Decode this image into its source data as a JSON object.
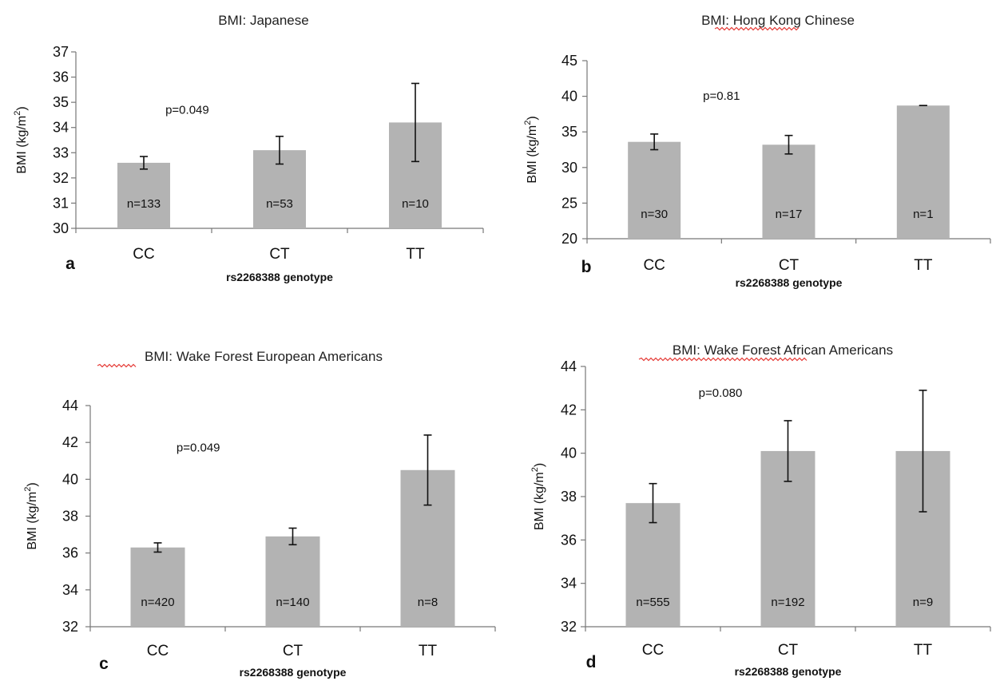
{
  "chart_data": [
    {
      "type": "bar",
      "panel_label": "a",
      "title": "BMI: Japanese",
      "xlabel": "rs2268388 genotype",
      "ylabel": "BMI (kg/m2)",
      "ylim": [
        30,
        37
      ],
      "yticks": [
        "30",
        "31",
        "32",
        "33",
        "34",
        "35",
        "36",
        "37"
      ],
      "categories": [
        "CC",
        "CT",
        "TT"
      ],
      "values": [
        32.6,
        33.1,
        34.2
      ],
      "err_low": [
        32.35,
        32.55,
        32.65
      ],
      "err_high": [
        32.85,
        33.65,
        35.75
      ],
      "n_labels": [
        "n=133",
        "n=53",
        "n=10"
      ],
      "annotation": "p=0.049",
      "annotation_x": 0.82,
      "annotation_y": 34.55
    },
    {
      "type": "bar",
      "panel_label": "b",
      "title": "BMI: Hong Kong  Chinese",
      "xlabel": "rs2268388 genotype",
      "ylabel": "BMI (kg/m2)",
      "ylim": [
        20,
        45
      ],
      "yticks": [
        "20",
        "25",
        "30",
        "35",
        "40",
        "45"
      ],
      "categories": [
        "CC",
        "CT",
        "TT"
      ],
      "values": [
        33.6,
        33.2,
        38.7
      ],
      "err_low": [
        32.5,
        31.9,
        38.7
      ],
      "err_high": [
        34.7,
        34.5,
        38.7
      ],
      "n_labels": [
        "n=30",
        "n=17",
        "n=1"
      ],
      "annotation": "p=0.81",
      "annotation_x": 1.0,
      "annotation_y": 39.5
    },
    {
      "type": "bar",
      "panel_label": "c",
      "title": "BMI:  Wake Forest European Americans",
      "xlabel": "rs2268388 genotype",
      "ylabel": "BMI (kg/m2)",
      "ylim": [
        32,
        44
      ],
      "yticks": [
        "32",
        "34",
        "36",
        "38",
        "40",
        "42",
        "44"
      ],
      "categories": [
        "CC",
        "CT",
        "TT"
      ],
      "values": [
        36.3,
        36.9,
        40.5
      ],
      "err_low": [
        36.05,
        36.45,
        38.6
      ],
      "err_high": [
        36.55,
        37.35,
        42.4
      ],
      "n_labels": [
        "n=420",
        "n=140",
        "n=8"
      ],
      "annotation": "p=0.049",
      "annotation_x": 0.8,
      "annotation_y": 41.5
    },
    {
      "type": "bar",
      "panel_label": "d",
      "title": "BMI: Wake Forest  African Americans",
      "xlabel": "rs2268388 genotype",
      "ylabel": "BMI (kg/m2)",
      "ylim": [
        32,
        44
      ],
      "yticks": [
        "32",
        "34",
        "36",
        "38",
        "40",
        "42",
        "44"
      ],
      "categories": [
        "CC",
        "CT",
        "TT"
      ],
      "values": [
        37.7,
        40.1,
        40.1
      ],
      "err_low": [
        36.8,
        38.7,
        37.3
      ],
      "err_high": [
        38.6,
        41.5,
        42.9
      ],
      "n_labels": [
        "n=555",
        "n=192",
        "n=9"
      ],
      "annotation": "p=0.080",
      "annotation_x": 1.0,
      "annotation_y": 42.6
    }
  ]
}
